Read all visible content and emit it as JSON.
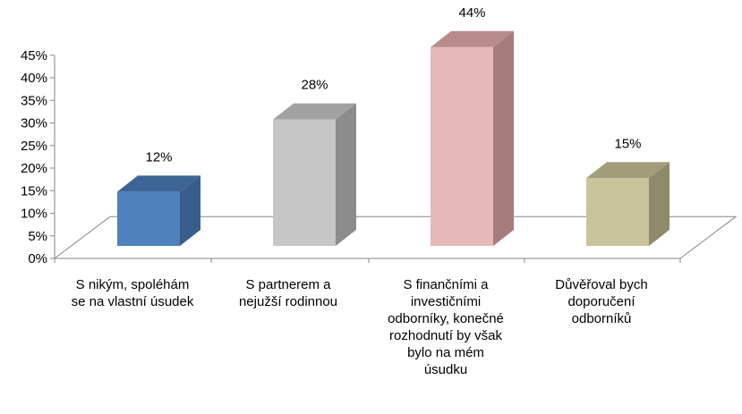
{
  "chart_data": {
    "type": "bar",
    "categories": [
      [
        "S nikým, spoléhám",
        "se na vlastní úsudek"
      ],
      [
        "S partnerem  a",
        "nejužší rodinnou"
      ],
      [
        "S finančními a",
        "investičními",
        "odborníky, konečné",
        "rozhodnutí by však",
        "bylo na mém",
        "úsudku"
      ],
      [
        "Důvěřoval bych",
        "doporučení",
        "odborníků"
      ]
    ],
    "values": [
      12,
      28,
      44,
      15
    ],
    "data_labels": [
      "12%",
      "28%",
      "44%",
      "15%"
    ],
    "ylim": [
      0,
      45
    ],
    "yticks": [
      "0%",
      "5%",
      "10%",
      "15%",
      "20%",
      "25%",
      "30%",
      "35%",
      "40%",
      "45%"
    ],
    "colors": {
      "bars": [
        {
          "front": "#4F81BD",
          "side": "#385D8A",
          "top": "#3C6495"
        },
        {
          "front": "#C6C6C6",
          "side": "#8C8C8C",
          "top": "#A2A2A2"
        },
        {
          "front": "#E6B9B8",
          "side": "#A37C7B",
          "top": "#B88C8B"
        },
        {
          "front": "#C9C39C",
          "side": "#8E8A6B",
          "top": "#A29D7B"
        }
      ],
      "axis": "#868686"
    },
    "grid": false,
    "legend": "none",
    "three_d": true
  }
}
